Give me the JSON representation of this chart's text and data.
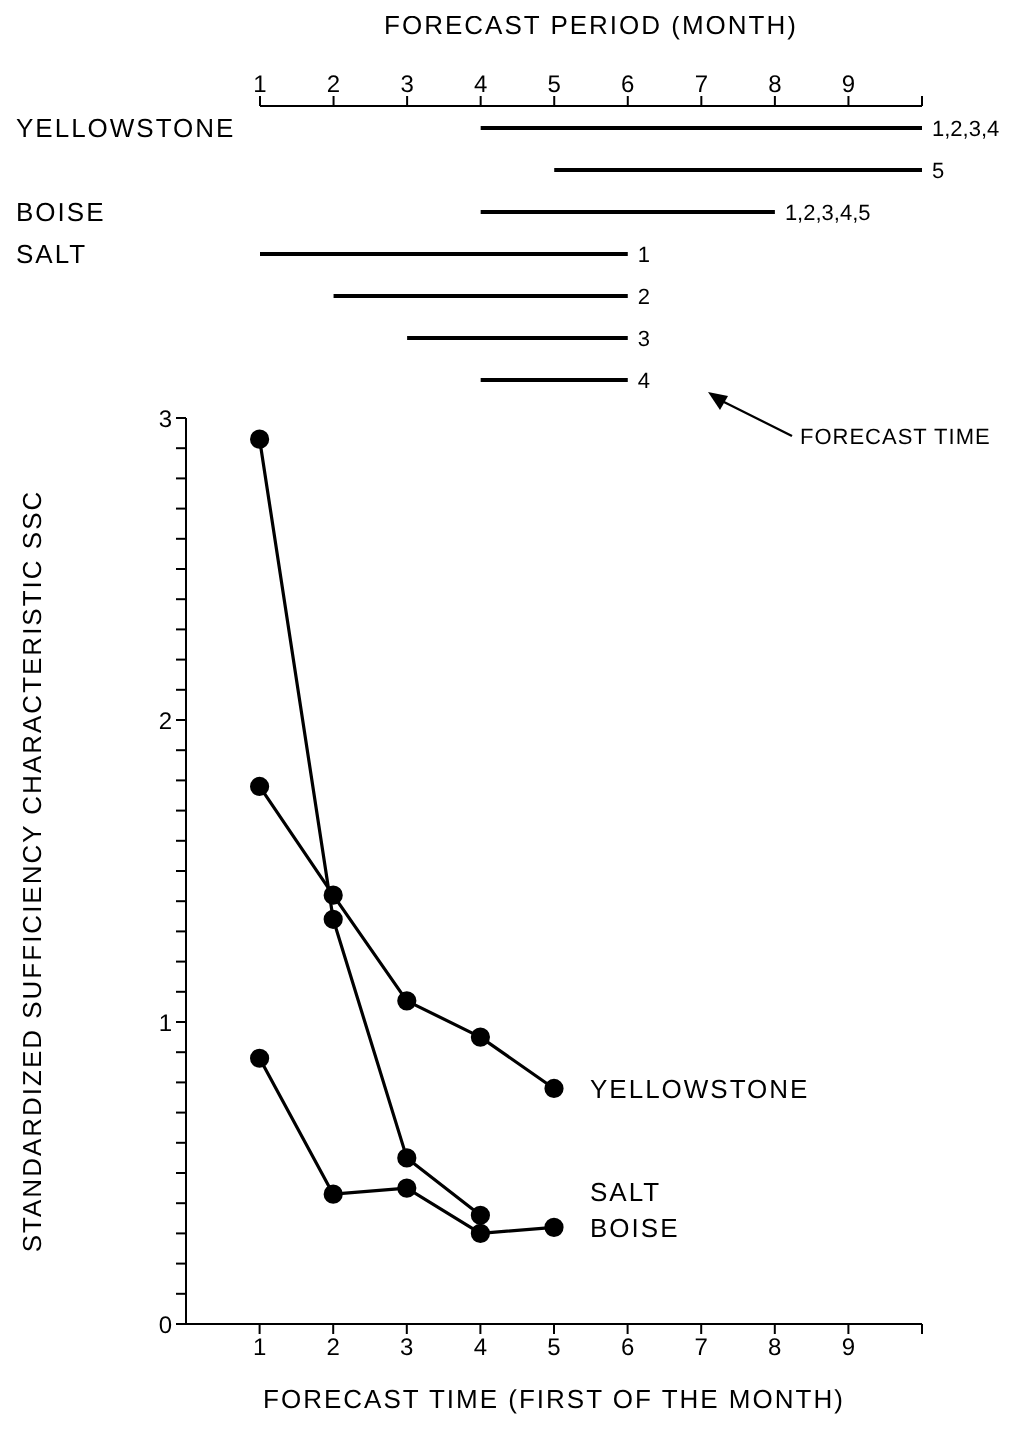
{
  "chart_data": [
    {
      "type": "bar",
      "orientation": "horizontal",
      "xlabel": "FORECAST PERIOD (MONTH)",
      "categories": [
        "YELLOWSTONE",
        null,
        "BOISE",
        "SALT",
        null,
        null,
        null
      ],
      "base": [
        4,
        5,
        4,
        1,
        2,
        3,
        4
      ],
      "values": [
        6,
        5,
        4,
        5,
        4,
        3,
        2
      ],
      "color": "#000000",
      "xlim": [
        1,
        10
      ],
      "xticks": [
        1,
        2,
        3,
        4,
        5,
        6,
        7,
        8,
        9,
        {
          "value": 10,
          "label": null
        }
      ],
      "annotations": [
        "1,2,3,4",
        "5",
        "1,2,3,4,5",
        "1",
        "2",
        "3",
        "4",
        "FORECAST TIME"
      ],
      "grid": false,
      "legend": false
    },
    {
      "type": "line",
      "xlabel": "FORECAST TIME (FIRST OF THE MONTH)",
      "ylabel": "STANDARDIZED SUFFICIENCY CHARACTERISTIC SSC",
      "xlim": [
        0,
        10
      ],
      "xticks": [
        1,
        2,
        3,
        4,
        5,
        6,
        7,
        8,
        9,
        {
          "value": 10,
          "label": null
        }
      ],
      "ylim": [
        0,
        3
      ],
      "yticks": [
        0,
        {
          "value": 0.1,
          "label": null
        },
        {
          "value": 0.2,
          "label": null
        },
        {
          "value": 0.3,
          "label": null
        },
        {
          "value": 0.4,
          "label": null
        },
        {
          "value": 0.5,
          "label": null
        },
        {
          "value": 0.6,
          "label": null
        },
        {
          "value": 0.7,
          "label": null
        },
        {
          "value": 0.8,
          "label": null
        },
        {
          "value": 0.9,
          "label": null
        },
        1,
        {
          "value": 1.1,
          "label": null
        },
        {
          "value": 1.2,
          "label": null
        },
        {
          "value": 1.3,
          "label": null
        },
        {
          "value": 1.4,
          "label": null
        },
        {
          "value": 1.5,
          "label": null
        },
        {
          "value": 1.6,
          "label": null
        },
        {
          "value": 1.7,
          "label": null
        },
        {
          "value": 1.8,
          "label": null
        },
        {
          "value": 1.9,
          "label": null
        },
        2,
        {
          "value": 2.1,
          "label": null
        },
        {
          "value": 2.2,
          "label": null
        },
        {
          "value": 2.3,
          "label": null
        },
        {
          "value": 2.4,
          "label": null
        },
        {
          "value": 2.5,
          "label": null
        },
        {
          "value": 2.6,
          "label": null
        },
        {
          "value": 2.7,
          "label": null
        },
        {
          "value": 2.8,
          "label": null
        },
        {
          "value": 2.9,
          "label": null
        },
        3
      ],
      "marker": "circle",
      "line_style": "solid",
      "grid": false,
      "legend": false,
      "series": [
        {
          "name": "YELLOWSTONE",
          "color": "#000000",
          "x": [
            1,
            2,
            3,
            4,
            5
          ],
          "values": [
            1.78,
            1.42,
            1.07,
            0.95,
            0.78
          ]
        },
        {
          "name": "SALT",
          "color": "#000000",
          "x": [
            1,
            2,
            3,
            4
          ],
          "values": [
            2.93,
            1.34,
            0.55,
            0.36
          ]
        },
        {
          "name": "BOISE",
          "color": "#000000",
          "x": [
            1,
            2,
            3,
            4,
            5
          ],
          "values": [
            0.88,
            0.43,
            0.45,
            0.3,
            0.32
          ]
        }
      ]
    }
  ]
}
